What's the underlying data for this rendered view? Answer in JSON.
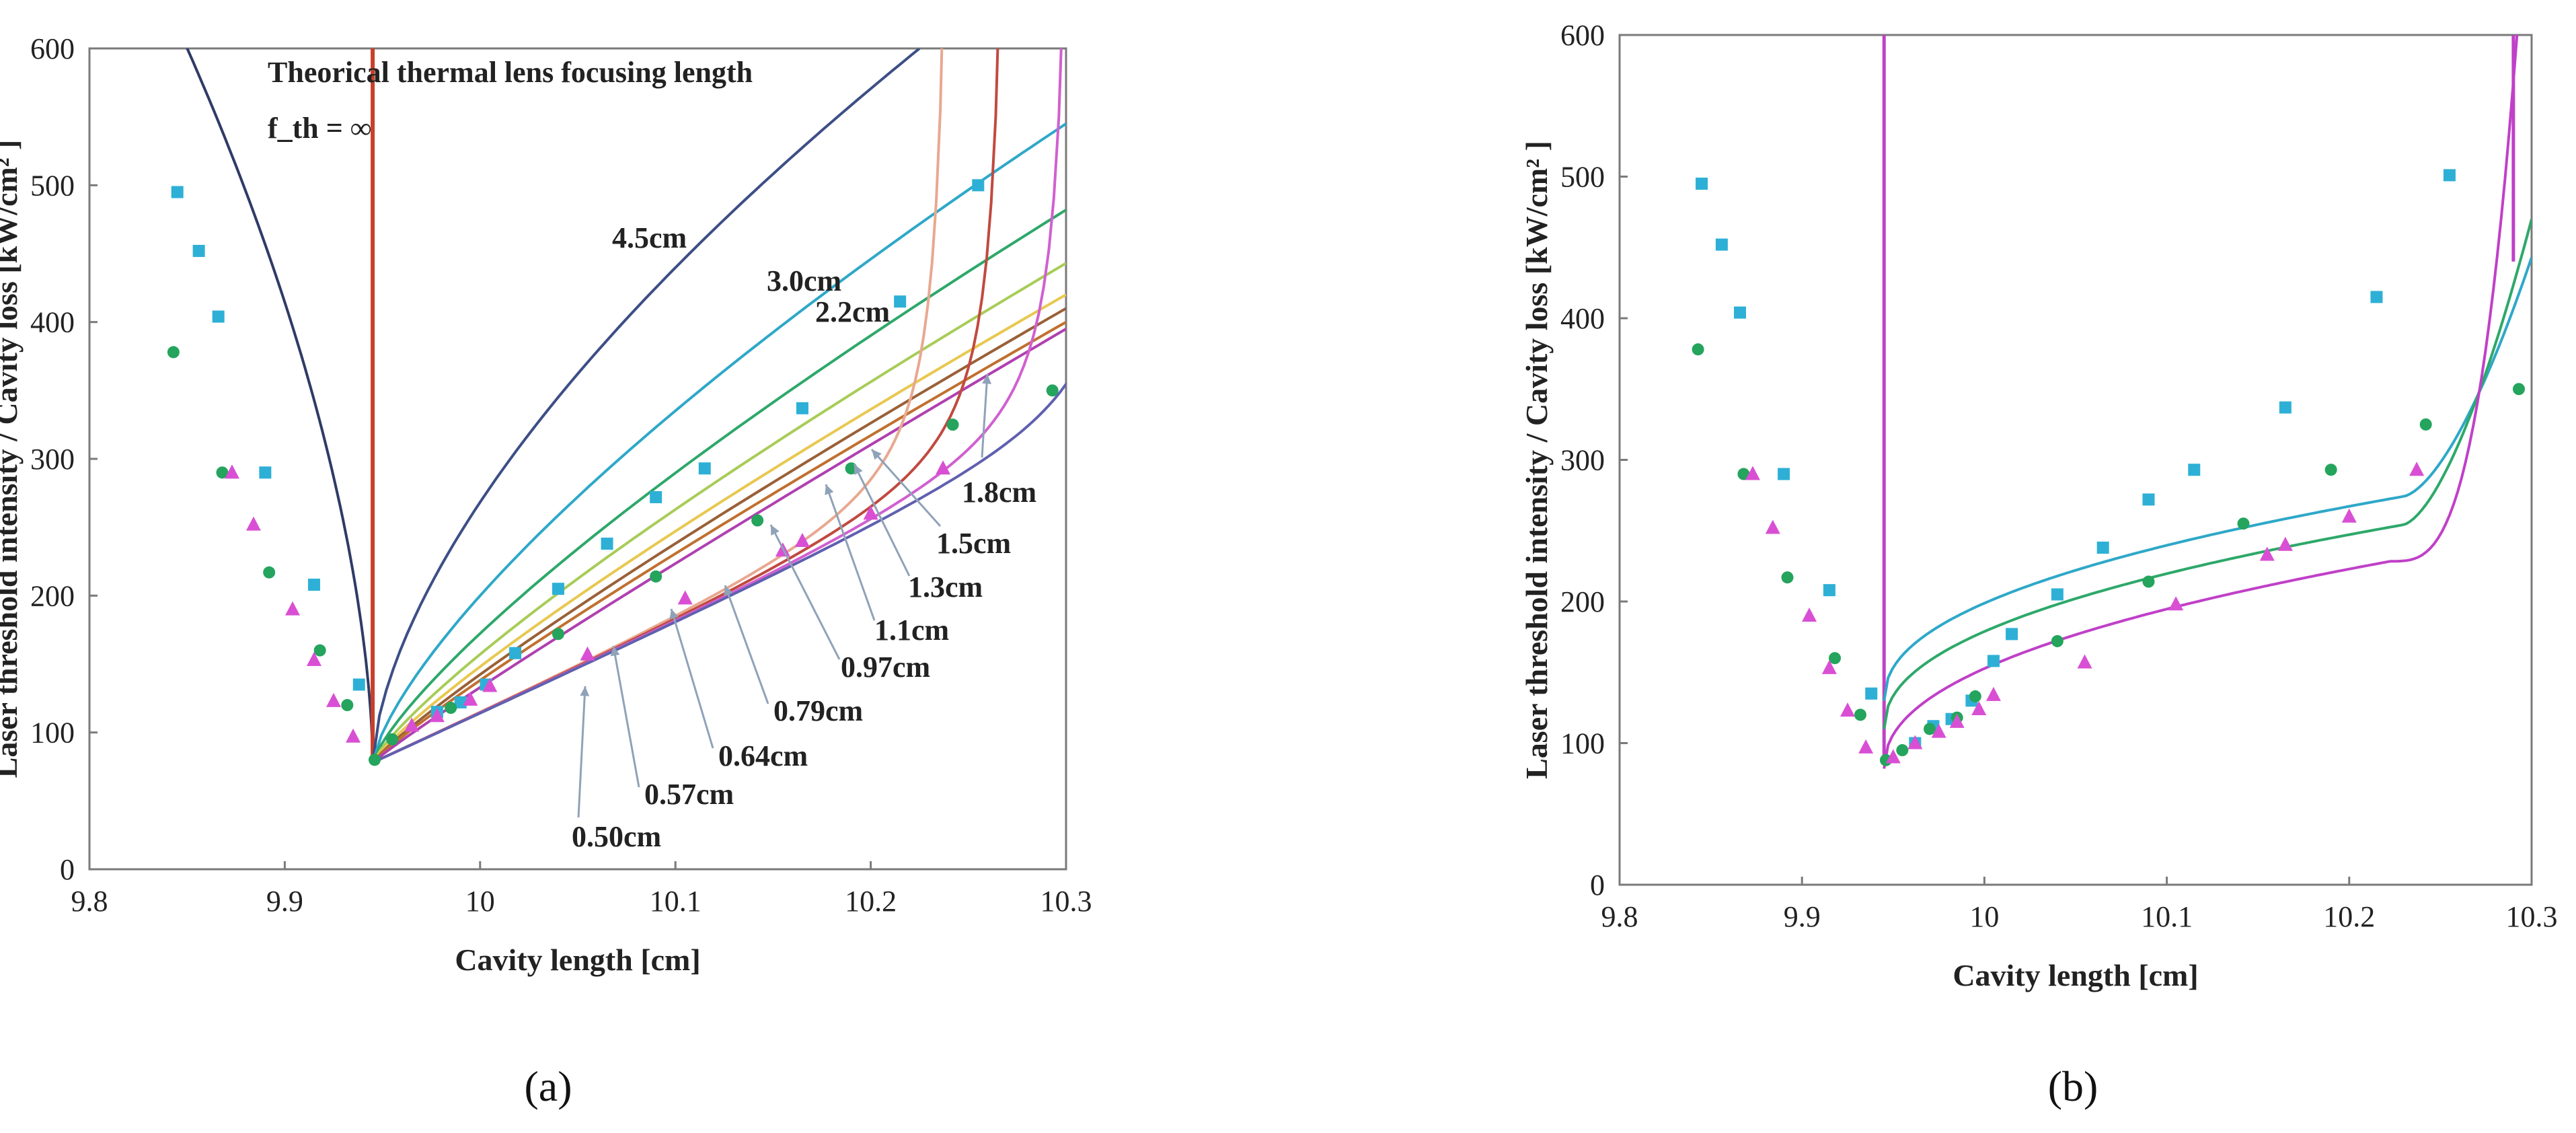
{
  "chart_data": [
    {
      "panel": "a",
      "type": "line",
      "title": "Theorical thermal lens focusing length",
      "subtitle": "f_th = ∞",
      "xlabel": "Cavity length [cm]",
      "ylabel": "Laser threshold intensity / Cavity loss  [kW/cm² ]",
      "xlim": [
        9.8,
        10.3
      ],
      "ylim": [
        0,
        600
      ],
      "xticks": [
        "9.8",
        "9.9",
        "10",
        "10.1",
        "10.2",
        "10.3"
      ],
      "yticks": [
        "0",
        "100",
        "200",
        "300",
        "400",
        "500",
        "600"
      ],
      "measured": {
        "squares": {
          "color": "#2eb0d6",
          "x": [
            9.845,
            9.856,
            9.866,
            9.89,
            9.915,
            9.938,
            9.978,
            9.99,
            10.003,
            10.018,
            10.04,
            10.065,
            10.09,
            10.115,
            10.165,
            10.215,
            10.255
          ],
          "y": [
            495,
            452,
            404,
            290,
            208,
            135,
            115,
            122,
            135,
            158,
            205,
            238,
            272,
            293,
            337,
            415,
            500
          ]
        },
        "circles": {
          "color": "#24a45c",
          "x": [
            9.843,
            9.868,
            9.892,
            9.918,
            9.932,
            9.946,
            9.955,
            9.985,
            10.04,
            10.09,
            10.142,
            10.19,
            10.242,
            10.293
          ],
          "y": [
            378,
            290,
            217,
            160,
            120,
            80,
            95,
            118,
            172,
            214,
            255,
            293,
            325,
            350
          ]
        },
        "triangles": {
          "color": "#d94fd4",
          "x": [
            9.873,
            9.884,
            9.904,
            9.915,
            9.925,
            9.935,
            9.965,
            9.978,
            9.995,
            10.005,
            10.055,
            10.105,
            10.155,
            10.165,
            10.2,
            10.237
          ],
          "y": [
            290,
            252,
            190,
            153,
            123,
            97,
            105,
            112,
            124,
            134,
            157,
            198,
            233,
            240,
            260,
            293
          ]
        }
      },
      "curves": [
        {
          "name": "f_th = ∞ (vertical)",
          "label": "",
          "color": "#c8402a"
        },
        {
          "name": "left boundary",
          "label": "",
          "color": "#2f3b66"
        },
        {
          "name": "4.5cm",
          "label": "4.5cm",
          "color": "#3d4e86"
        },
        {
          "name": "3.0cm",
          "label": "3.0cm",
          "color": "#2ea8c8"
        },
        {
          "name": "2.2cm",
          "label": "2.2cm",
          "color": "#2ea86a"
        },
        {
          "name": "1.8cm",
          "label": "1.8cm",
          "color": "#a8cc58"
        },
        {
          "name": "1.5cm",
          "label": "1.5cm",
          "color": "#e8c850"
        },
        {
          "name": "1.3cm",
          "label": "1.3cm",
          "color": "#9a6038"
        },
        {
          "name": "1.1cm",
          "label": "1.1cm",
          "color": "#c07030"
        },
        {
          "name": "0.97cm",
          "label": "0.97cm",
          "color": "#e8a890"
        },
        {
          "name": "0.79cm",
          "label": "0.79cm",
          "color": "#c04a40"
        },
        {
          "name": "0.64cm",
          "label": "0.64cm",
          "color": "#d060d0"
        },
        {
          "name": "0.57cm",
          "label": "0.57cm",
          "color": "#6060b0"
        },
        {
          "name": "0.50cm",
          "label": "0.50cm",
          "color": "#b040b0"
        }
      ],
      "caption": "(a)"
    },
    {
      "panel": "b",
      "type": "line",
      "xlabel": "Cavity length [cm]",
      "ylabel": "Laser threshold intensity / Cavity loss  [kW/cm² ]",
      "xlim": [
        9.8,
        10.3
      ],
      "ylim": [
        0,
        600
      ],
      "xticks": [
        "9.8",
        "9.9",
        "10",
        "10.1",
        "10.2",
        "10.3"
      ],
      "yticks": [
        "0",
        "100",
        "200",
        "300",
        "400",
        "500",
        "600"
      ],
      "measured": {
        "squares": {
          "color": "#2eb0d6",
          "x": [
            9.845,
            9.856,
            9.866,
            9.89,
            9.915,
            9.938,
            9.962,
            9.972,
            9.982,
            9.993,
            10.005,
            10.015,
            10.04,
            10.065,
            10.09,
            10.115,
            10.165,
            10.215,
            10.255
          ],
          "y": [
            495,
            452,
            404,
            290,
            208,
            135,
            100,
            112,
            117,
            130,
            158,
            177,
            205,
            238,
            272,
            293,
            337,
            415,
            501
          ]
        },
        "circles": {
          "color": "#24a45c",
          "x": [
            9.843,
            9.868,
            9.892,
            9.918,
            9.932,
            9.946,
            9.955,
            9.97,
            9.985,
            9.995,
            10.04,
            10.09,
            10.142,
            10.19,
            10.242,
            10.293
          ],
          "y": [
            378,
            290,
            217,
            160,
            120,
            88,
            95,
            110,
            118,
            133,
            172,
            214,
            255,
            293,
            325,
            350
          ]
        },
        "triangles": {
          "color": "#d94fd4",
          "x": [
            9.873,
            9.884,
            9.904,
            9.915,
            9.925,
            9.935,
            9.95,
            9.962,
            9.975,
            9.985,
            9.997,
            10.005,
            10.055,
            10.105,
            10.155,
            10.165,
            10.2,
            10.237
          ],
          "y": [
            290,
            252,
            190,
            153,
            123,
            97,
            90,
            100,
            108,
            115,
            124,
            134,
            157,
            198,
            233,
            240,
            260,
            293
          ]
        }
      },
      "curves": [
        {
          "name": "upper fit",
          "color": "#2ea8c8"
        },
        {
          "name": "middle fit",
          "color": "#2ea86a"
        },
        {
          "name": "lower fit",
          "color": "#c040c8"
        }
      ],
      "caption": "(b)"
    }
  ]
}
